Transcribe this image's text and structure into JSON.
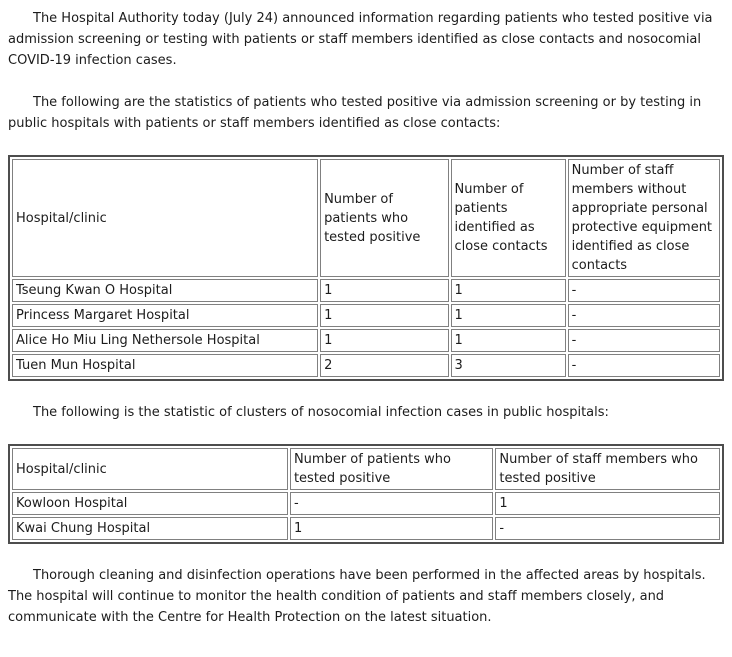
{
  "document": {
    "type": "press-release",
    "background_color": "#ffffff",
    "text_color": "#1c1c1c",
    "table_outer_border_color": "#4d4d4d",
    "table_cell_border_color": "#808080"
  },
  "paragraphs": {
    "intro": "The Hospital Authority today (July 24) announced information regarding patients who tested positive via admission screening or testing with patients or staff members identified as close contacts and nosocomial COVID-19 infection cases.",
    "admission_stats_intro": "The following are the statistics of patients who tested positive via admission screening or by testing in public hospitals with patients or staff members identified as close contacts:",
    "cluster_stats_intro": "The following is the statistic of clusters of nosocomial infection cases in public hospitals:",
    "closing": "Thorough cleaning and disinfection operations have been performed in the affected areas by hospitals. The hospital will continue to monitor the health condition of patients and staff members closely, and communicate with the Centre for Health Protection on the latest situation."
  },
  "admission_table": {
    "headers": [
      "Hospital/clinic",
      "Number of patients who tested positive",
      "Number of patients identified as close contacts",
      "Number of staff members without appropriate personal protective equipment identified as close contacts"
    ],
    "rows": [
      [
        "Tseung Kwan O Hospital",
        "1",
        "1",
        "-"
      ],
      [
        "Princess Margaret Hospital",
        "1",
        "1",
        "-"
      ],
      [
        "Alice Ho Miu Ling Nethersole Hospital",
        "1",
        "1",
        "-"
      ],
      [
        "Tuen Mun Hospital",
        "2",
        "3",
        "-"
      ]
    ]
  },
  "cluster_table": {
    "headers": [
      "Hospital/clinic",
      "Number of patients who tested positive",
      "Number of staff members who tested positive"
    ],
    "rows": [
      [
        "Kowloon Hospital",
        "-",
        "1"
      ],
      [
        "Kwai Chung Hospital",
        "1",
        "-"
      ]
    ]
  }
}
